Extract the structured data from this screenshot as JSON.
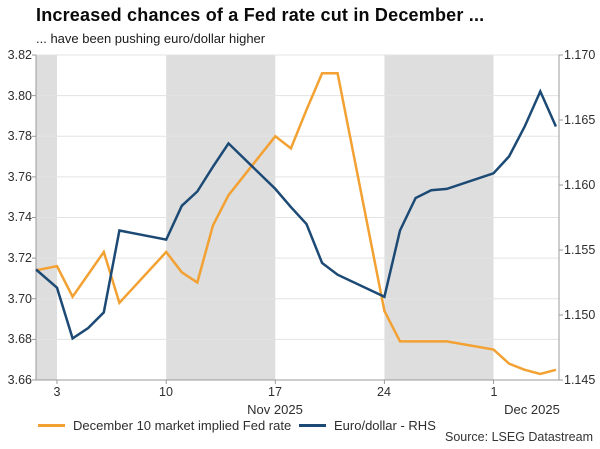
{
  "header": {
    "title": "Increased chances of a Fed rate cut in December ...",
    "subtitle": "... have been pushing euro/dollar higher"
  },
  "source": "Source: LSEG Datastream",
  "colors": {
    "fed_rate_line": "#F2A132",
    "eurusd_line": "#1C4A75",
    "weekend_band": "#DEDEDE",
    "gridline": "#E3E3E3",
    "axis": "#9B9B9B",
    "tick_text": "#2E2E2E"
  },
  "legend": [
    {
      "label": "December 10 market implied Fed rate",
      "color": "#F2A132"
    },
    {
      "label": "Euro/dollar - RHS",
      "color": "#1C4A75"
    }
  ],
  "chart_data": {
    "type": "line",
    "title": "Increased chances of a Fed rate cut in December ...",
    "subtitle": "... have been pushing euro/dollar higher",
    "domain_days": [
      -1.35,
      32.2
    ],
    "x_axis": {
      "ticks": [
        {
          "label": "3",
          "day": 0
        },
        {
          "label": "10",
          "day": 7
        },
        {
          "label": "17",
          "day": 14
        },
        {
          "label": "24",
          "day": 21
        },
        {
          "label": "1",
          "day": 28
        }
      ],
      "month_labels": [
        {
          "label": "Nov 2025",
          "day_center": 14.0
        },
        {
          "label": "Dec 2025",
          "day_center": 30.45
        }
      ]
    },
    "y_left": {
      "min": 3.66,
      "max": 3.82,
      "tick_labels": [
        "3.82",
        "3.80",
        "3.78",
        "3.76",
        "3.74",
        "3.72",
        "3.70",
        "3.68",
        "3.66"
      ],
      "tick_values": [
        3.82,
        3.8,
        3.78,
        3.76,
        3.74,
        3.72,
        3.7,
        3.68,
        3.66
      ]
    },
    "y_right": {
      "min": 1.145,
      "max": 1.17,
      "tick_labels": [
        "1.170",
        "1.165",
        "1.160",
        "1.155",
        "1.150",
        "1.145"
      ],
      "tick_values": [
        1.17,
        1.165,
        1.16,
        1.155,
        1.15,
        1.145
      ]
    },
    "shaded_bands": [
      {
        "from_day": -1.35,
        "to_day": 0
      },
      {
        "from_day": 7,
        "to_day": 14
      },
      {
        "from_day": 21,
        "to_day": 28
      }
    ],
    "series": [
      {
        "name": "December 10 market implied Fed rate",
        "axis": "left",
        "color": "#F2A132",
        "points": [
          {
            "date": "chart-start",
            "d": -1.35,
            "v": 3.714
          },
          {
            "date": "Nov 3",
            "d": 0,
            "v": 3.716
          },
          {
            "date": "Nov 4",
            "d": 1,
            "v": 3.701
          },
          {
            "date": "Nov 5",
            "d": 2,
            "v": 3.712
          },
          {
            "date": "Nov 6",
            "d": 3,
            "v": 3.723
          },
          {
            "date": "Nov 7",
            "d": 4,
            "v": 3.698
          },
          {
            "date": "Nov 10",
            "d": 7,
            "v": 3.723
          },
          {
            "date": "Nov 11",
            "d": 8,
            "v": 3.713
          },
          {
            "date": "Nov 12",
            "d": 9,
            "v": 3.708
          },
          {
            "date": "Nov 13",
            "d": 10,
            "v": 3.736
          },
          {
            "date": "Nov 14",
            "d": 11,
            "v": 3.751
          },
          {
            "date": "Nov 17",
            "d": 14,
            "v": 3.78
          },
          {
            "date": "Nov 18",
            "d": 15,
            "v": 3.774
          },
          {
            "date": "Nov 19",
            "d": 16,
            "v": 3.793
          },
          {
            "date": "Nov 20",
            "d": 17,
            "v": 3.811
          },
          {
            "date": "Nov 21",
            "d": 18,
            "v": 3.811
          },
          {
            "date": "Nov 24",
            "d": 21,
            "v": 3.694
          },
          {
            "date": "Nov 25",
            "d": 22,
            "v": 3.679
          },
          {
            "date": "Nov 26",
            "d": 23,
            "v": 3.679
          },
          {
            "date": "Nov 27",
            "d": 24,
            "v": 3.679
          },
          {
            "date": "Nov 28",
            "d": 25,
            "v": 3.679
          },
          {
            "date": "Dec 1",
            "d": 28,
            "v": 3.675
          },
          {
            "date": "Dec 2",
            "d": 29,
            "v": 3.668
          },
          {
            "date": "Dec 3",
            "d": 30,
            "v": 3.665
          },
          {
            "date": "Dec 4",
            "d": 31,
            "v": 3.663
          },
          {
            "date": "Dec 5",
            "d": 32,
            "v": 3.665
          }
        ]
      },
      {
        "name": "Euro/dollar - RHS",
        "axis": "right",
        "color": "#1C4A75",
        "points": [
          {
            "date": "chart-start",
            "d": -1.35,
            "v": 1.1535
          },
          {
            "date": "Nov 3",
            "d": 0,
            "v": 1.1521
          },
          {
            "date": "Nov 4",
            "d": 1,
            "v": 1.1482
          },
          {
            "date": "Nov 5",
            "d": 2,
            "v": 1.149
          },
          {
            "date": "Nov 6",
            "d": 3,
            "v": 1.1502
          },
          {
            "date": "Nov 7",
            "d": 4,
            "v": 1.1565
          },
          {
            "date": "Nov 10",
            "d": 7,
            "v": 1.1558
          },
          {
            "date": "Nov 11",
            "d": 8,
            "v": 1.1584
          },
          {
            "date": "Nov 12",
            "d": 9,
            "v": 1.1595
          },
          {
            "date": "Nov 13",
            "d": 10,
            "v": 1.1614
          },
          {
            "date": "Nov 14",
            "d": 11,
            "v": 1.1632
          },
          {
            "date": "Nov 17",
            "d": 14,
            "v": 1.1597
          },
          {
            "date": "Nov 18",
            "d": 15,
            "v": 1.1583
          },
          {
            "date": "Nov 19",
            "d": 16,
            "v": 1.157
          },
          {
            "date": "Nov 20",
            "d": 17,
            "v": 1.154
          },
          {
            "date": "Nov 21",
            "d": 18,
            "v": 1.1531
          },
          {
            "date": "Nov 24",
            "d": 21,
            "v": 1.1514
          },
          {
            "date": "Nov 25",
            "d": 22,
            "v": 1.1565
          },
          {
            "date": "Nov 26",
            "d": 23,
            "v": 1.159
          },
          {
            "date": "Nov 27",
            "d": 24,
            "v": 1.1596
          },
          {
            "date": "Nov 28",
            "d": 25,
            "v": 1.1597
          },
          {
            "date": "Dec 1",
            "d": 28,
            "v": 1.1609
          },
          {
            "date": "Dec 2",
            "d": 29,
            "v": 1.1622
          },
          {
            "date": "Dec 3",
            "d": 30,
            "v": 1.1645
          },
          {
            "date": "Dec 4",
            "d": 31,
            "v": 1.1672
          },
          {
            "date": "Dec 5",
            "d": 32,
            "v": 1.1645
          }
        ]
      }
    ]
  }
}
